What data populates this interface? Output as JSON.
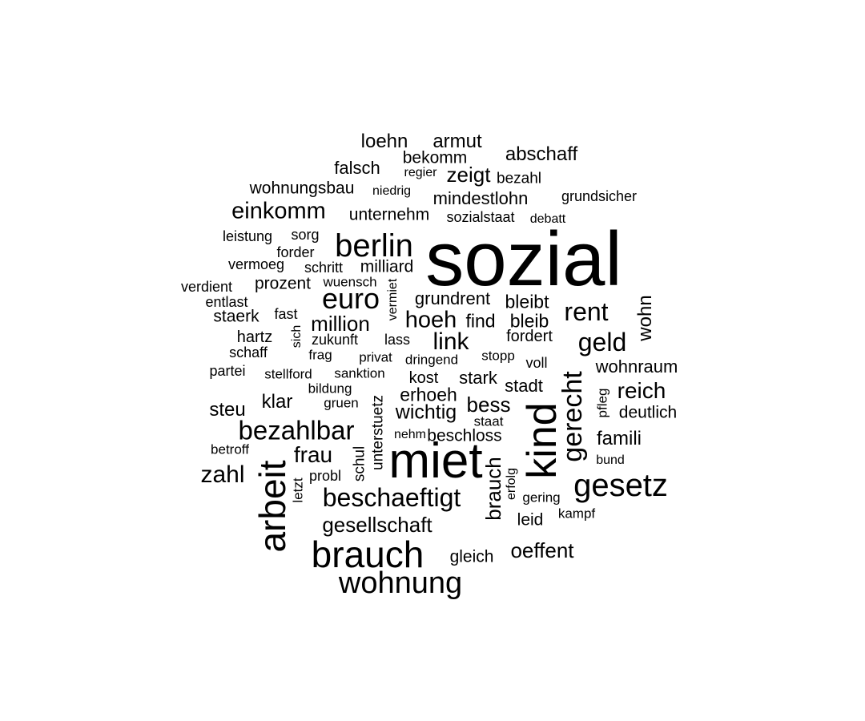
{
  "word_cloud": {
    "words": [
      "sozial",
      "miet",
      "kind",
      "arbeit",
      "brauch",
      "gesetz",
      "wohnung",
      "berlin",
      "euro",
      "bezahlbar",
      "gerecht",
      "beschaeftigt",
      "rent",
      "einkomm",
      "geld",
      "link",
      "hoeh",
      "zahl",
      "oeffent",
      "gesellschaft",
      "frau",
      "million",
      "reich",
      "brauch",
      "wohn",
      "abschaff",
      "armut",
      "loehn",
      "zeigt",
      "wichtig",
      "erhoeh",
      "grundrent",
      "mindestlohn",
      "wohnraum",
      "bess",
      "klar",
      "steu",
      "famili",
      "deutlich",
      "bleibt",
      "bleib",
      "find",
      "stark",
      "kost",
      "stadt",
      "beschloss",
      "falsch",
      "bekomm",
      "wohnungsbau",
      "unternehm",
      "prozent",
      "milliard",
      "gleich",
      "leid",
      "staerk",
      "fordert",
      "schul",
      "unterstuetz",
      "bezahl",
      "sozialstaat",
      "grundsicher",
      "leistung",
      "sorg",
      "forder",
      "vermoeg",
      "schritt",
      "verdient",
      "wuensch",
      "entlast",
      "fast",
      "hartz",
      "zukunft",
      "lass",
      "schaff",
      "frag",
      "privat",
      "dringend",
      "stopp",
      "voll",
      "partei",
      "stellford",
      "sanktion",
      "bildung",
      "gruen",
      "staat",
      "pfleg",
      "betroff",
      "nehm",
      "bund",
      "probl",
      "letzt",
      "erfolg",
      "gering",
      "kampf",
      "regier",
      "niedrig",
      "debatt",
      "vermiet",
      "sich"
    ]
  }
}
